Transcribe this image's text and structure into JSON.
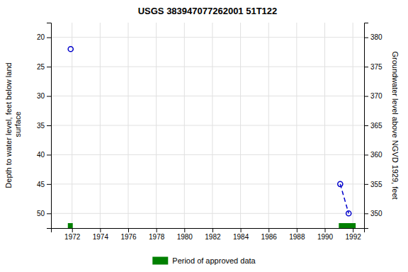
{
  "chart_data": {
    "type": "line",
    "title": "USGS 383947077262001 51T122",
    "y_label": "Depth to water level, feet below land\n surface",
    "y2_label": "Groundwater level above NGVD 1929, feet",
    "xlim": [
      1970.5,
      1992.8
    ],
    "xticks": [
      1972,
      1974,
      1976,
      1978,
      1980,
      1982,
      1984,
      1986,
      1988,
      1990,
      1992
    ],
    "ylim": [
      52.5,
      17.5
    ],
    "yticks": [
      20,
      25,
      30,
      35,
      40,
      45,
      50
    ],
    "y2lim": [
      347.5,
      382.5
    ],
    "y2ticks": [
      350,
      355,
      360,
      365,
      370,
      375,
      380
    ],
    "grid": true,
    "legend": "bottom",
    "series": [
      {
        "type": "scatter",
        "color": "#0000cc",
        "marker": "circle",
        "x": [
          1971.9
        ],
        "values": [
          22.0
        ]
      },
      {
        "type": "line",
        "color": "#0000cc",
        "marker": "circle",
        "line_style": "dashed",
        "x": [
          1991.1,
          1991.7
        ],
        "values": [
          45.0,
          50.0
        ]
      }
    ],
    "periods": {
      "name": "Period of approved data",
      "color": "#008000",
      "start": [
        1971.7,
        1991.0
      ],
      "end": [
        1972.05,
        1992.2
      ]
    }
  }
}
